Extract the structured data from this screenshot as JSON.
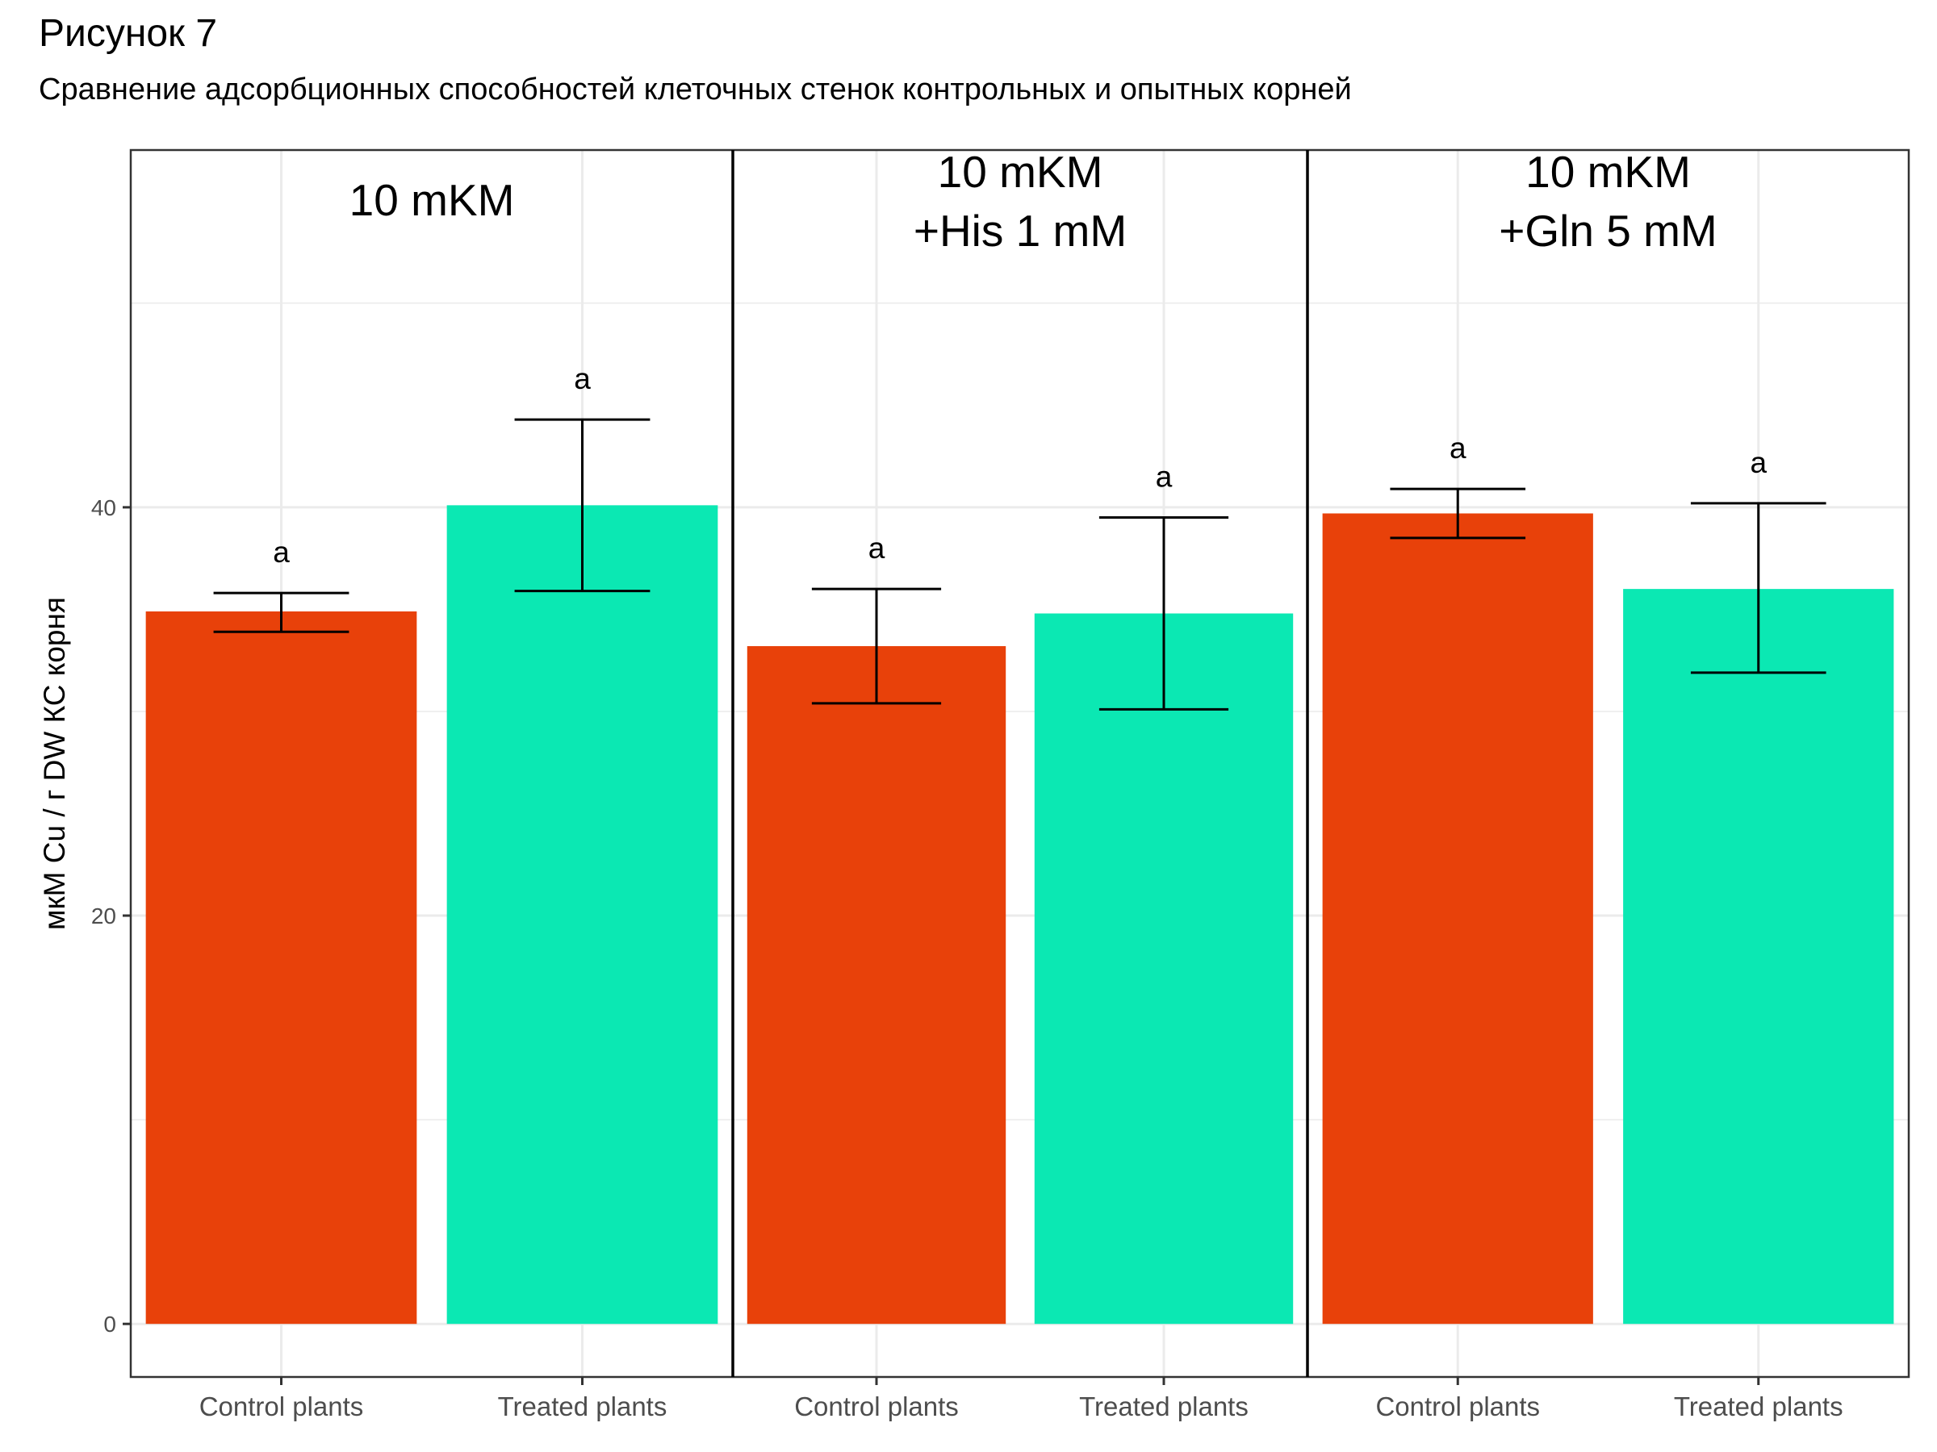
{
  "chart_data": {
    "type": "bar",
    "title": "Рисунок 7",
    "subtitle": "Сравнение адсорбционных способностей клеточных стенок контрольных и опытных корней",
    "ylabel": "мкМ Cu / г DW КС корня",
    "ylim": [
      -2.6,
      57.5
    ],
    "yticks": [
      0,
      20,
      40
    ],
    "grid": true,
    "legend": "none",
    "colors": {
      "control": "#E8410A",
      "treated": "#0BE8B3",
      "error_bar": "#000000",
      "grid": "#EBEBEB"
    },
    "panels": [
      {
        "label_lines": [
          "10 mKM"
        ],
        "bars": [
          {
            "category": "Control plants",
            "value": 34.9,
            "err_low": 33.9,
            "err_high": 35.8,
            "sig": "a",
            "color": "#E8410A"
          },
          {
            "category": "Treated plants",
            "value": 40.1,
            "err_low": 35.9,
            "err_high": 44.3,
            "sig": "a",
            "color": "#0BE8B3"
          }
        ]
      },
      {
        "label_lines": [
          "10 mKM",
          "+His 1 mM"
        ],
        "bars": [
          {
            "category": "Control plants",
            "value": 33.2,
            "err_low": 30.4,
            "err_high": 36.0,
            "sig": "a",
            "color": "#E8410A"
          },
          {
            "category": "Treated plants",
            "value": 34.8,
            "err_low": 30.1,
            "err_high": 39.5,
            "sig": "a",
            "color": "#0BE8B3"
          }
        ]
      },
      {
        "label_lines": [
          "10 mKM",
          "+Gln 5 mM"
        ],
        "bars": [
          {
            "category": "Control plants",
            "value": 39.7,
            "err_low": 38.5,
            "err_high": 40.9,
            "sig": "a",
            "color": "#E8410A"
          },
          {
            "category": "Treated plants",
            "value": 36.0,
            "err_low": 31.9,
            "err_high": 40.2,
            "sig": "a",
            "color": "#0BE8B3"
          }
        ]
      }
    ]
  }
}
